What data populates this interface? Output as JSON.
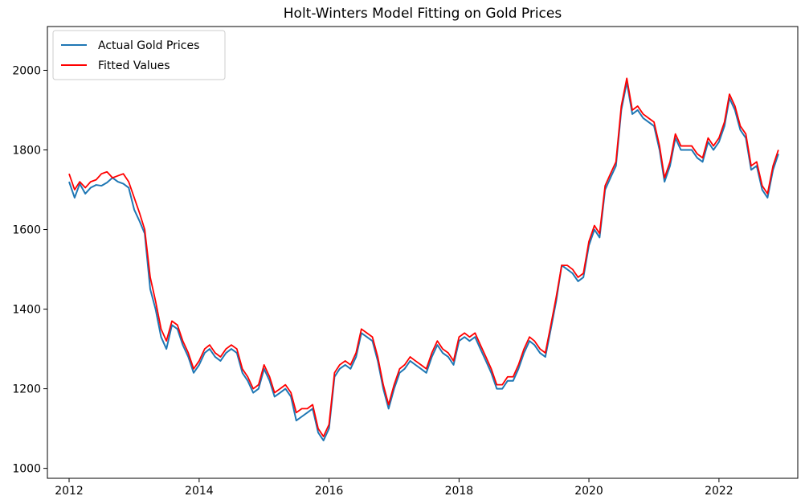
{
  "chart_data": {
    "type": "line",
    "title": "Holt-Winters Model Fitting on Gold Prices",
    "xlabel": "",
    "ylabel": "",
    "x_range": [
      "2011-09-01",
      "2023-03-20"
    ],
    "ylim": [
      975,
      2110
    ],
    "x_ticks": [
      "2012",
      "2014",
      "2016",
      "2018",
      "2020",
      "2022"
    ],
    "y_ticks": [
      1000,
      1200,
      1400,
      1600,
      1800,
      2000
    ],
    "grid": false,
    "legend_position": "upper-left",
    "series": [
      {
        "name": "Actual Gold Prices",
        "color": "#1f77b4",
        "x": [
          "2012-01",
          "2012-02",
          "2012-03",
          "2012-04",
          "2012-05",
          "2012-06",
          "2012-07",
          "2012-08",
          "2012-09",
          "2012-10",
          "2012-11",
          "2012-12",
          "2013-01",
          "2013-02",
          "2013-03",
          "2013-04",
          "2013-05",
          "2013-06",
          "2013-07",
          "2013-08",
          "2013-09",
          "2013-10",
          "2013-11",
          "2013-12",
          "2014-01",
          "2014-02",
          "2014-03",
          "2014-04",
          "2014-05",
          "2014-06",
          "2014-07",
          "2014-08",
          "2014-09",
          "2014-10",
          "2014-11",
          "2014-12",
          "2015-01",
          "2015-02",
          "2015-03",
          "2015-04",
          "2015-05",
          "2015-06",
          "2015-07",
          "2015-08",
          "2015-09",
          "2015-10",
          "2015-11",
          "2015-12",
          "2016-01",
          "2016-02",
          "2016-03",
          "2016-04",
          "2016-05",
          "2016-06",
          "2016-07",
          "2016-08",
          "2016-09",
          "2016-10",
          "2016-11",
          "2016-12",
          "2017-01",
          "2017-02",
          "2017-03",
          "2017-04",
          "2017-05",
          "2017-06",
          "2017-07",
          "2017-08",
          "2017-09",
          "2017-10",
          "2017-11",
          "2017-12",
          "2018-01",
          "2018-02",
          "2018-03",
          "2018-04",
          "2018-05",
          "2018-06",
          "2018-07",
          "2018-08",
          "2018-09",
          "2018-10",
          "2018-11",
          "2018-12",
          "2019-01",
          "2019-02",
          "2019-03",
          "2019-04",
          "2019-05",
          "2019-06",
          "2019-07",
          "2019-08",
          "2019-09",
          "2019-10",
          "2019-11",
          "2019-12",
          "2020-01",
          "2020-02",
          "2020-03",
          "2020-04",
          "2020-05",
          "2020-06",
          "2020-07",
          "2020-08",
          "2020-09",
          "2020-10",
          "2020-11",
          "2020-12",
          "2021-01",
          "2021-02",
          "2021-03",
          "2021-04",
          "2021-05",
          "2021-06",
          "2021-07",
          "2021-08",
          "2021-09",
          "2021-10",
          "2021-11",
          "2021-12",
          "2022-01",
          "2022-02",
          "2022-03",
          "2022-04",
          "2022-05",
          "2022-06",
          "2022-07",
          "2022-08",
          "2022-09",
          "2022-10",
          "2022-11",
          "2022-12"
        ],
        "y": [
          1720,
          1680,
          1715,
          1690,
          1705,
          1712,
          1710,
          1718,
          1730,
          1720,
          1715,
          1705,
          1650,
          1620,
          1590,
          1450,
          1400,
          1330,
          1300,
          1360,
          1350,
          1310,
          1280,
          1240,
          1260,
          1290,
          1300,
          1280,
          1270,
          1290,
          1300,
          1290,
          1240,
          1220,
          1190,
          1200,
          1250,
          1220,
          1180,
          1190,
          1200,
          1180,
          1120,
          1130,
          1140,
          1150,
          1090,
          1070,
          1100,
          1230,
          1250,
          1260,
          1250,
          1280,
          1340,
          1330,
          1320,
          1270,
          1200,
          1150,
          1200,
          1240,
          1250,
          1270,
          1260,
          1250,
          1240,
          1280,
          1310,
          1290,
          1280,
          1260,
          1320,
          1330,
          1320,
          1330,
          1300,
          1270,
          1240,
          1200,
          1200,
          1220,
          1220,
          1250,
          1290,
          1320,
          1310,
          1290,
          1280,
          1350,
          1420,
          1510,
          1500,
          1490,
          1470,
          1480,
          1560,
          1600,
          1580,
          1700,
          1730,
          1760,
          1900,
          1970,
          1890,
          1900,
          1880,
          1870,
          1860,
          1800,
          1720,
          1760,
          1830,
          1800,
          1800,
          1800,
          1780,
          1770,
          1820,
          1800,
          1820,
          1860,
          1930,
          1900,
          1850,
          1830,
          1750,
          1760,
          1700,
          1680,
          1750,
          1790
        ]
      },
      {
        "name": "Fitted Values",
        "color": "#ff0000",
        "x": [
          "2012-01",
          "2012-02",
          "2012-03",
          "2012-04",
          "2012-05",
          "2012-06",
          "2012-07",
          "2012-08",
          "2012-09",
          "2012-10",
          "2012-11",
          "2012-12",
          "2013-01",
          "2013-02",
          "2013-03",
          "2013-04",
          "2013-05",
          "2013-06",
          "2013-07",
          "2013-08",
          "2013-09",
          "2013-10",
          "2013-11",
          "2013-12",
          "2014-01",
          "2014-02",
          "2014-03",
          "2014-04",
          "2014-05",
          "2014-06",
          "2014-07",
          "2014-08",
          "2014-09",
          "2014-10",
          "2014-11",
          "2014-12",
          "2015-01",
          "2015-02",
          "2015-03",
          "2015-04",
          "2015-05",
          "2015-06",
          "2015-07",
          "2015-08",
          "2015-09",
          "2015-10",
          "2015-11",
          "2015-12",
          "2016-01",
          "2016-02",
          "2016-03",
          "2016-04",
          "2016-05",
          "2016-06",
          "2016-07",
          "2016-08",
          "2016-09",
          "2016-10",
          "2016-11",
          "2016-12",
          "2017-01",
          "2017-02",
          "2017-03",
          "2017-04",
          "2017-05",
          "2017-06",
          "2017-07",
          "2017-08",
          "2017-09",
          "2017-10",
          "2017-11",
          "2017-12",
          "2018-01",
          "2018-02",
          "2018-03",
          "2018-04",
          "2018-05",
          "2018-06",
          "2018-07",
          "2018-08",
          "2018-09",
          "2018-10",
          "2018-11",
          "2018-12",
          "2019-01",
          "2019-02",
          "2019-03",
          "2019-04",
          "2019-05",
          "2019-06",
          "2019-07",
          "2019-08",
          "2019-09",
          "2019-10",
          "2019-11",
          "2019-12",
          "2020-01",
          "2020-02",
          "2020-03",
          "2020-04",
          "2020-05",
          "2020-06",
          "2020-07",
          "2020-08",
          "2020-09",
          "2020-10",
          "2020-11",
          "2020-12",
          "2021-01",
          "2021-02",
          "2021-03",
          "2021-04",
          "2021-05",
          "2021-06",
          "2021-07",
          "2021-08",
          "2021-09",
          "2021-10",
          "2021-11",
          "2021-12",
          "2022-01",
          "2022-02",
          "2022-03",
          "2022-04",
          "2022-05",
          "2022-06",
          "2022-07",
          "2022-08",
          "2022-09",
          "2022-10",
          "2022-11",
          "2022-12"
        ],
        "y": [
          1740,
          1700,
          1720,
          1705,
          1720,
          1725,
          1740,
          1745,
          1730,
          1735,
          1740,
          1720,
          1680,
          1640,
          1600,
          1480,
          1420,
          1350,
          1320,
          1370,
          1360,
          1320,
          1290,
          1250,
          1270,
          1300,
          1310,
          1290,
          1280,
          1300,
          1310,
          1300,
          1250,
          1230,
          1200,
          1210,
          1260,
          1230,
          1190,
          1200,
          1210,
          1190,
          1140,
          1150,
          1150,
          1160,
          1100,
          1080,
          1110,
          1240,
          1260,
          1270,
          1260,
          1290,
          1350,
          1340,
          1330,
          1280,
          1210,
          1160,
          1210,
          1250,
          1260,
          1280,
          1270,
          1260,
          1250,
          1290,
          1320,
          1300,
          1290,
          1270,
          1330,
          1340,
          1330,
          1340,
          1310,
          1280,
          1250,
          1210,
          1210,
          1230,
          1230,
          1260,
          1300,
          1330,
          1320,
          1300,
          1290,
          1360,
          1430,
          1510,
          1510,
          1500,
          1480,
          1490,
          1570,
          1610,
          1590,
          1710,
          1740,
          1770,
          1910,
          1980,
          1900,
          1910,
          1890,
          1880,
          1870,
          1810,
          1730,
          1770,
          1840,
          1810,
          1810,
          1810,
          1790,
          1780,
          1830,
          1810,
          1830,
          1870,
          1940,
          1910,
          1860,
          1840,
          1760,
          1770,
          1710,
          1690,
          1760,
          1800
        ]
      }
    ]
  }
}
